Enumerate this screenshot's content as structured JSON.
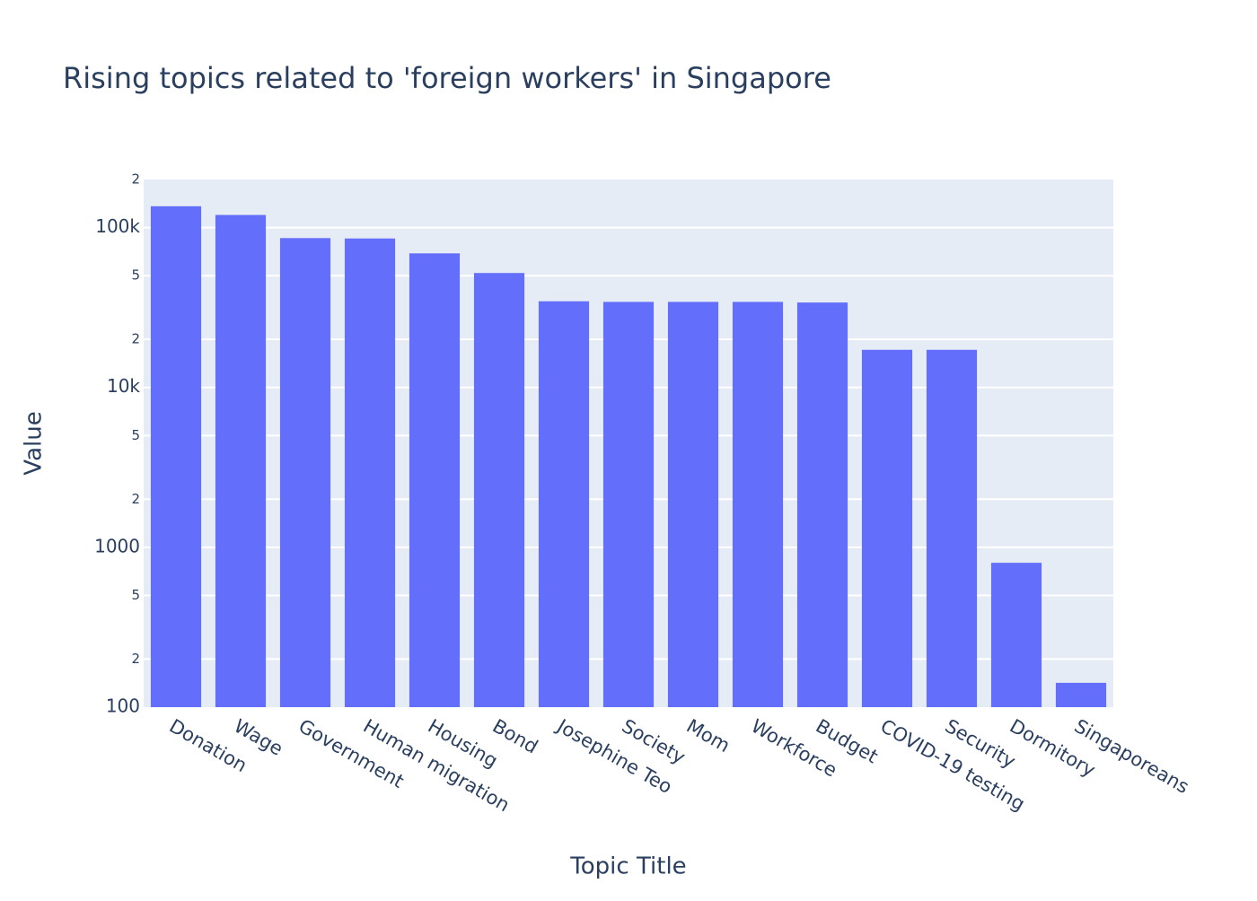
{
  "chart_data": {
    "type": "bar",
    "title": "Rising topics related to 'foreign workers' in Singapore",
    "x_label": "Topic Title",
    "y_label": "Value",
    "categories": [
      "Donation",
      "Wage",
      "Government",
      "Human migration",
      "Housing",
      "Bond",
      "Josephine Teo",
      "Society",
      "Mom",
      "Workforce",
      "Budget",
      "COVID-19 testing",
      "Security",
      "Dormitory",
      "Singaporeans"
    ],
    "values": [
      136000,
      120000,
      86000,
      85500,
      69000,
      52000,
      34600,
      34300,
      34300,
      34300,
      34000,
      17200,
      17200,
      800,
      142
    ],
    "color": "#636efa",
    "log_y": true,
    "ylim": [
      100,
      200000
    ],
    "yticks": [
      100,
      {
        "value": 200,
        "label": "2"
      },
      {
        "value": 500,
        "label": "5"
      },
      1000,
      {
        "value": 2000,
        "label": "2"
      },
      {
        "value": 5000,
        "label": "5"
      },
      {
        "value": 10000,
        "label": "10k"
      },
      {
        "value": 20000,
        "label": "2"
      },
      {
        "value": 50000,
        "label": "5"
      },
      {
        "value": 100000,
        "label": "100k"
      },
      {
        "value": 200000,
        "label": "2"
      }
    ],
    "grid": true
  }
}
